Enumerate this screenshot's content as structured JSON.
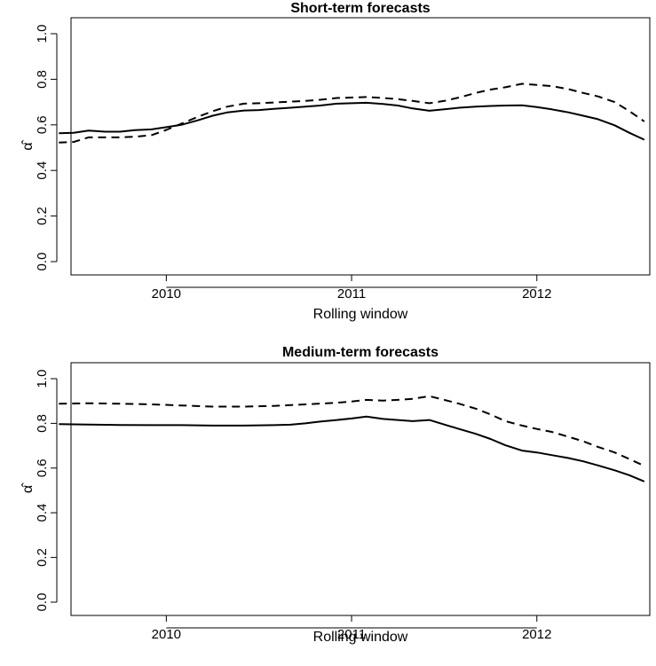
{
  "chart_data": [
    {
      "type": "line",
      "title": "Short-term forecasts",
      "xlabel": "Rolling window",
      "ylabel": "α̂",
      "xlim": [
        2009.5,
        2012.6
      ],
      "ylim": [
        0.0,
        1.0
      ],
      "xticks": [
        2010,
        2011,
        2012
      ],
      "xtick_labels": [
        "2010",
        "2011",
        "2012"
      ],
      "yticks": [
        0.0,
        0.2,
        0.4,
        0.6,
        0.8,
        1.0
      ],
      "ytick_labels": [
        "0.0",
        "0.2",
        "0.4",
        "0.6",
        "0.8",
        "1.0"
      ],
      "grid": false,
      "legend": null,
      "series": [
        {
          "style": "solid",
          "color": "#000000",
          "x": [
            2009.42,
            2009.5,
            2009.58,
            2009.67,
            2009.75,
            2009.83,
            2009.92,
            2010.0,
            2010.08,
            2010.17,
            2010.25,
            2010.33,
            2010.42,
            2010.5,
            2010.58,
            2010.67,
            2010.75,
            2010.83,
            2010.92,
            2011.0,
            2011.08,
            2011.17,
            2011.25,
            2011.33,
            2011.42,
            2011.5,
            2011.58,
            2011.67,
            2011.75,
            2011.83,
            2011.92,
            2012.0,
            2012.08,
            2012.17,
            2012.25,
            2012.33,
            2012.42,
            2012.5,
            2012.58
          ],
          "y": [
            0.563,
            0.565,
            0.575,
            0.57,
            0.57,
            0.577,
            0.58,
            0.59,
            0.6,
            0.62,
            0.64,
            0.655,
            0.663,
            0.665,
            0.67,
            0.675,
            0.68,
            0.685,
            0.693,
            0.695,
            0.697,
            0.692,
            0.685,
            0.672,
            0.662,
            0.668,
            0.675,
            0.68,
            0.683,
            0.685,
            0.686,
            0.678,
            0.668,
            0.655,
            0.64,
            0.625,
            0.598,
            0.565,
            0.535
          ]
        },
        {
          "style": "dashed",
          "color": "#000000",
          "x": [
            2009.42,
            2009.5,
            2009.58,
            2009.67,
            2009.75,
            2009.83,
            2009.92,
            2010.0,
            2010.08,
            2010.17,
            2010.25,
            2010.33,
            2010.42,
            2010.5,
            2010.58,
            2010.67,
            2010.75,
            2010.83,
            2010.92,
            2011.0,
            2011.08,
            2011.17,
            2011.25,
            2011.33,
            2011.42,
            2011.5,
            2011.58,
            2011.67,
            2011.75,
            2011.83,
            2011.92,
            2012.0,
            2012.08,
            2012.17,
            2012.25,
            2012.33,
            2012.42,
            2012.5,
            2012.58
          ],
          "y": [
            0.522,
            0.525,
            0.545,
            0.545,
            0.545,
            0.548,
            0.555,
            0.578,
            0.605,
            0.635,
            0.66,
            0.68,
            0.693,
            0.695,
            0.698,
            0.702,
            0.705,
            0.71,
            0.718,
            0.72,
            0.722,
            0.718,
            0.713,
            0.705,
            0.695,
            0.705,
            0.72,
            0.74,
            0.755,
            0.765,
            0.78,
            0.775,
            0.77,
            0.757,
            0.74,
            0.725,
            0.7,
            0.66,
            0.615
          ]
        }
      ]
    },
    {
      "type": "line",
      "title": "Medium-term forecasts",
      "xlabel": "Rolling window",
      "ylabel": "α̂",
      "xlim": [
        2009.5,
        2012.6
      ],
      "ylim": [
        0.0,
        1.0
      ],
      "xticks": [
        2010,
        2011,
        2012
      ],
      "xtick_labels": [
        "2010",
        "2011",
        "2012"
      ],
      "yticks": [
        0.0,
        0.2,
        0.4,
        0.6,
        0.8,
        1.0
      ],
      "ytick_labels": [
        "0.0",
        "0.2",
        "0.4",
        "0.6",
        "0.8",
        "1.0"
      ],
      "grid": false,
      "legend": null,
      "series": [
        {
          "style": "solid",
          "color": "#000000",
          "x": [
            2009.42,
            2009.58,
            2009.75,
            2009.92,
            2010.08,
            2010.25,
            2010.42,
            2010.58,
            2010.67,
            2010.75,
            2010.83,
            2010.92,
            2011.0,
            2011.08,
            2011.17,
            2011.25,
            2011.33,
            2011.42,
            2011.5,
            2011.58,
            2011.67,
            2011.75,
            2011.83,
            2011.92,
            2012.0,
            2012.08,
            2012.17,
            2012.25,
            2012.33,
            2012.42,
            2012.5,
            2012.58
          ],
          "y": [
            0.797,
            0.795,
            0.793,
            0.792,
            0.792,
            0.79,
            0.79,
            0.792,
            0.794,
            0.8,
            0.808,
            0.815,
            0.822,
            0.83,
            0.82,
            0.815,
            0.81,
            0.815,
            0.795,
            0.775,
            0.753,
            0.73,
            0.702,
            0.678,
            0.67,
            0.658,
            0.645,
            0.63,
            0.612,
            0.59,
            0.568,
            0.54
          ]
        },
        {
          "style": "dashed",
          "color": "#000000",
          "x": [
            2009.42,
            2009.58,
            2009.75,
            2009.92,
            2010.08,
            2010.25,
            2010.42,
            2010.58,
            2010.75,
            2010.92,
            2011.0,
            2011.08,
            2011.17,
            2011.25,
            2011.33,
            2011.42,
            2011.5,
            2011.58,
            2011.67,
            2011.75,
            2011.83,
            2011.92,
            2012.0,
            2012.08,
            2012.17,
            2012.25,
            2012.33,
            2012.42,
            2012.5,
            2012.58
          ],
          "y": [
            0.888,
            0.89,
            0.888,
            0.885,
            0.88,
            0.875,
            0.875,
            0.878,
            0.885,
            0.892,
            0.898,
            0.905,
            0.902,
            0.905,
            0.91,
            0.922,
            0.905,
            0.888,
            0.866,
            0.84,
            0.81,
            0.79,
            0.775,
            0.762,
            0.74,
            0.72,
            0.695,
            0.67,
            0.64,
            0.61
          ]
        }
      ]
    }
  ]
}
